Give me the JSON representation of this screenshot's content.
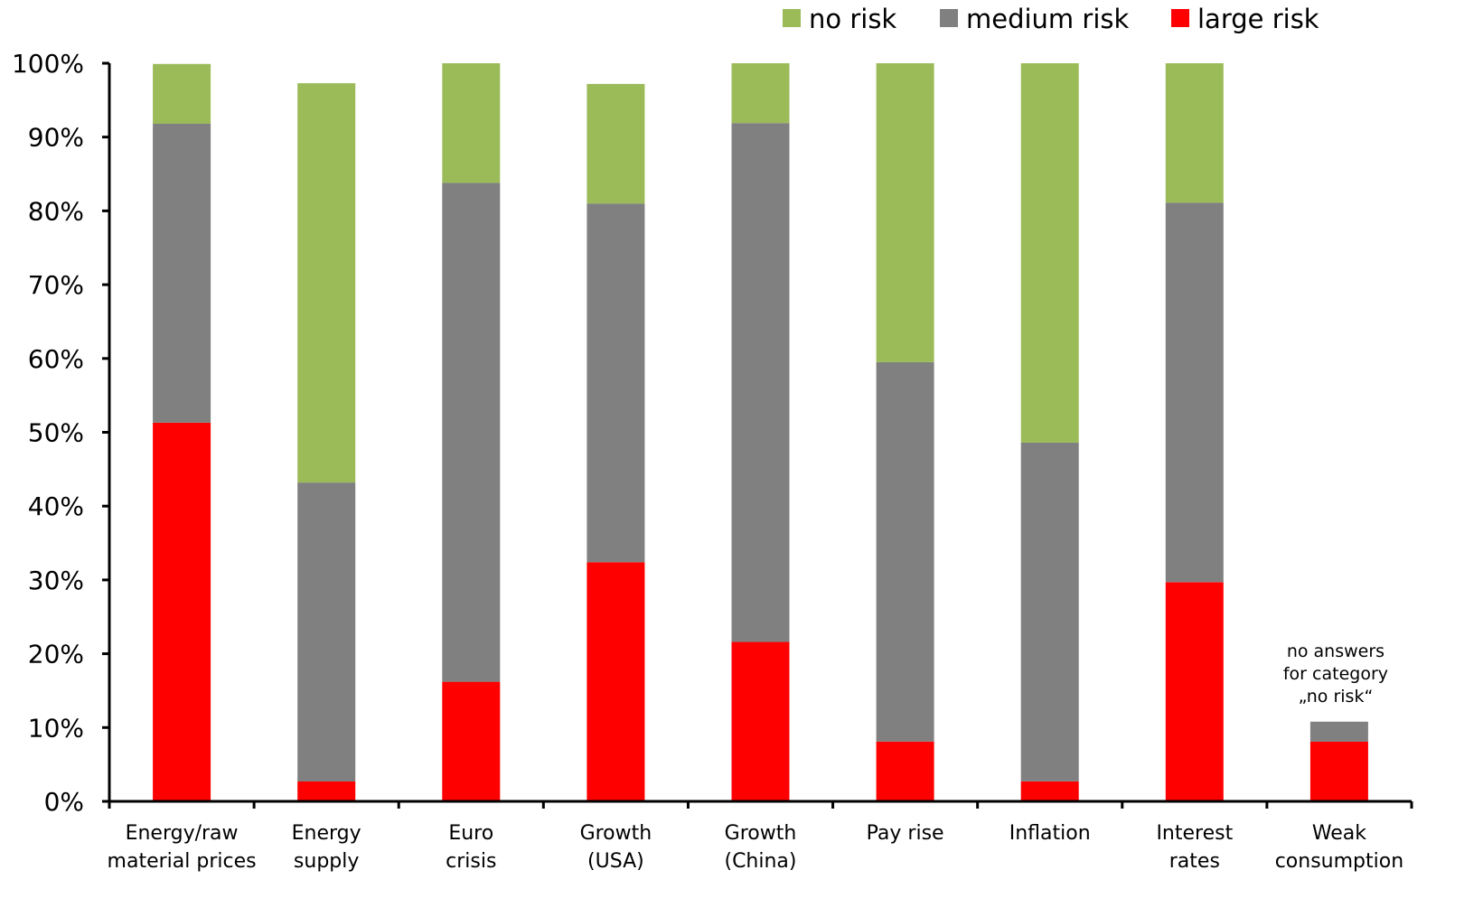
{
  "chart_data": {
    "type": "bar",
    "stacked": true,
    "categories": [
      [
        "Energy/raw",
        "material prices"
      ],
      [
        "Energy",
        "supply"
      ],
      [
        "Euro",
        "crisis"
      ],
      [
        "Growth",
        "(USA)"
      ],
      [
        "Growth",
        "(China)"
      ],
      [
        "Pay rise"
      ],
      [
        "Inflation"
      ],
      [
        "Interest",
        "rates"
      ],
      [
        "Weak",
        "consumption"
      ]
    ],
    "series": [
      {
        "name": "large risk",
        "color": "#ff0000",
        "values": [
          51.3,
          2.7,
          16.2,
          32.4,
          21.6,
          8.1,
          2.7,
          29.7,
          8.1
        ]
      },
      {
        "name": "medium risk",
        "color": "#808080",
        "values": [
          40.5,
          40.5,
          67.6,
          48.6,
          70.3,
          51.4,
          45.9,
          51.4,
          2.7
        ]
      },
      {
        "name": "no risk",
        "color": "#9bbb59",
        "values": [
          8.1,
          54.1,
          16.2,
          16.2,
          8.1,
          40.5,
          51.4,
          18.9,
          0
        ]
      }
    ],
    "legend_order": [
      "no risk",
      "medium risk",
      "large risk"
    ],
    "legend_position": "top-right",
    "yticks": [
      "0%",
      "10%",
      "20%",
      "30%",
      "40%",
      "50%",
      "60%",
      "70%",
      "80%",
      "90%",
      "100%"
    ],
    "ylim": [
      0,
      100
    ],
    "annotation": {
      "category_index": 8,
      "lines": [
        "no answers",
        "for category",
        "„no risk“"
      ]
    },
    "grid": false
  }
}
